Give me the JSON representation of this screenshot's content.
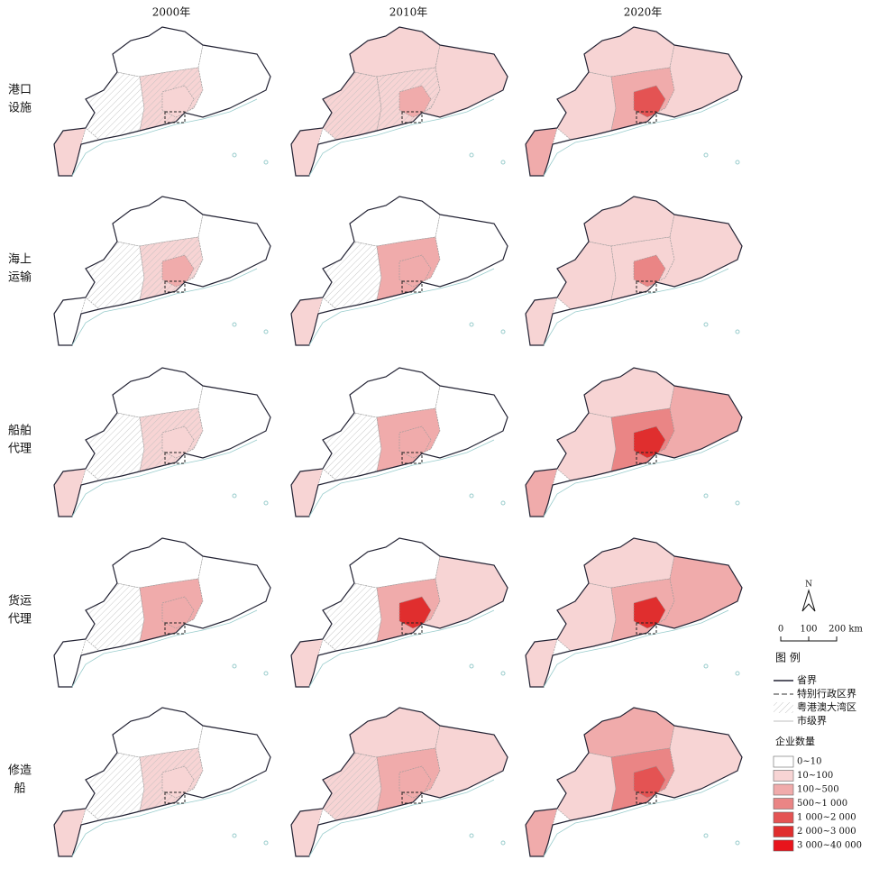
{
  "columns": [
    "2000年",
    "2010年",
    "2020年"
  ],
  "rows": [
    [
      "港口",
      "设施"
    ],
    [
      "海上",
      "运输"
    ],
    [
      "船舶",
      "代理"
    ],
    [
      "货运",
      "代理"
    ],
    [
      "修造",
      "船"
    ]
  ],
  "north": "N",
  "scale": [
    "0",
    "100",
    "200 km"
  ],
  "legend": {
    "title": "图 例",
    "lines": [
      "省界",
      "特别行政区界",
      "粤港澳大湾区",
      "市级界"
    ],
    "count_title": "企业数量",
    "classes": [
      {
        "label": "0~10",
        "color": "#ffffff"
      },
      {
        "label": "10~100",
        "color": "#f7d4d4"
      },
      {
        "label": "100~500",
        "color": "#f0abab"
      },
      {
        "label": "500~1 000",
        "color": "#ea8585"
      },
      {
        "label": "1 000~2 000",
        "color": "#e45353"
      },
      {
        "label": "2 000~3 000",
        "color": "#e02e2e"
      },
      {
        "label": "3 000~40 000",
        "color": "#e8141c"
      }
    ]
  }
}
